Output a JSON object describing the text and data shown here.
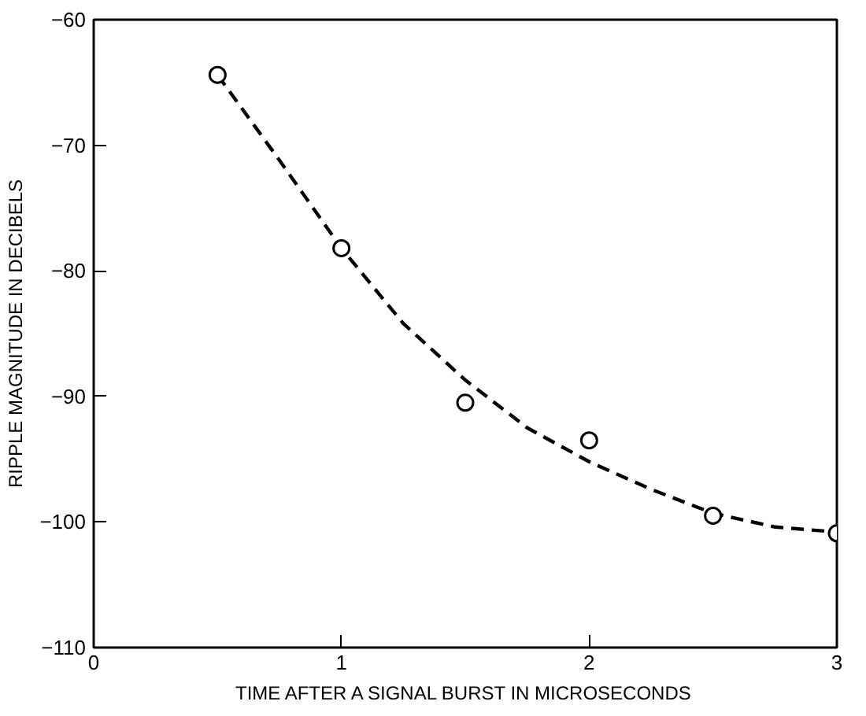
{
  "chart_data": {
    "type": "scatter",
    "xlabel": "TIME AFTER A SIGNAL BURST IN MICROSECONDS",
    "ylabel": "RIPPLE MAGNITUDE IN DECIBELS",
    "xlim": [
      0,
      3
    ],
    "ylim": [
      -110,
      -60
    ],
    "xticks": [
      0,
      1,
      2,
      3
    ],
    "yticks": [
      -60,
      -70,
      -80,
      -90,
      -100,
      -110
    ],
    "grid": false,
    "series": [
      {
        "color": "#000000",
        "marker": "circle",
        "x": [
          0.5,
          1,
          1.5,
          2,
          2.5,
          3
        ],
        "values": [
          -64.4,
          -78.2,
          -90.5,
          -93.5,
          -99.5,
          -100.9
        ]
      },
      {
        "type": "line",
        "color": "#000000",
        "line_style": "dashed",
        "x": [
          0.5,
          0.75,
          1,
          1.25,
          1.5,
          1.75,
          2,
          2.25,
          2.5,
          2.75,
          3
        ],
        "values": [
          -64.4,
          -71.2,
          -78.2,
          -84.2,
          -88.7,
          -92.5,
          -95.2,
          -97.4,
          -99.3,
          -100.4,
          -100.8
        ]
      }
    ]
  }
}
